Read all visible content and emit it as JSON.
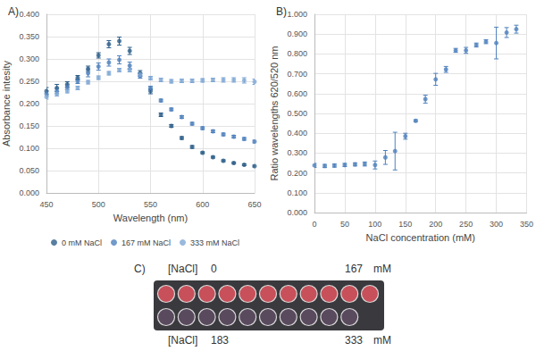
{
  "chart_data": [
    {
      "type": "scatter",
      "title": "A)",
      "x_label": "Wavelength (nm)",
      "y_label": "Absorbance intesity",
      "xlim": [
        450,
        650
      ],
      "xticks": [
        450,
        500,
        550,
        600,
        650
      ],
      "ylim": [
        0,
        0.4
      ],
      "yticks": [
        {
          "value": 0,
          "label": "0.000"
        },
        {
          "value": 0.05,
          "label": "0.050"
        },
        {
          "value": 0.1,
          "label": "0.100"
        },
        {
          "value": 0.15,
          "label": "0.150"
        },
        {
          "value": 0.2,
          "label": "0.200"
        },
        {
          "value": 0.25,
          "label": "0.250"
        },
        {
          "value": 0.3,
          "label": "0.300"
        },
        {
          "value": 0.35,
          "label": "0.350"
        },
        {
          "value": 0.4,
          "label": "0.400"
        }
      ],
      "grid": true,
      "legend": "bottom",
      "marker": "circle",
      "x": [
        450,
        460,
        470,
        480,
        490,
        500,
        510,
        520,
        530,
        540,
        550,
        560,
        570,
        580,
        590,
        600,
        610,
        620,
        630,
        640,
        650
      ],
      "series": [
        {
          "name": "0 mM NaCl",
          "color": "#2e5f8a",
          "values": [
            0.228,
            0.235,
            0.243,
            0.258,
            0.278,
            0.308,
            0.333,
            0.34,
            0.318,
            0.268,
            0.228,
            0.175,
            0.15,
            0.123,
            0.103,
            0.09,
            0.08,
            0.072,
            0.067,
            0.063,
            0.06
          ],
          "errors": [
            0.008,
            0.008,
            0.006,
            0.005,
            0.006,
            0.006,
            0.008,
            0.009,
            0.008,
            0.006,
            0.006,
            0.004,
            0.003,
            0.003,
            0.003,
            0.002,
            0.002,
            0.002,
            0.002,
            0.002,
            0.002
          ]
        },
        {
          "name": "167 mM NaCl",
          "color": "#4f81bd",
          "values": [
            0.222,
            0.228,
            0.237,
            0.25,
            0.268,
            0.283,
            0.292,
            0.298,
            0.285,
            0.262,
            0.235,
            0.207,
            0.187,
            0.17,
            0.155,
            0.145,
            0.138,
            0.131,
            0.126,
            0.121,
            0.115
          ],
          "errors": [
            0.006,
            0.006,
            0.005,
            0.005,
            0.008,
            0.008,
            0.008,
            0.009,
            0.008,
            0.005,
            0.004,
            0.003,
            0.003,
            0.003,
            0.003,
            0.003,
            0.003,
            0.003,
            0.003,
            0.003,
            0.003
          ]
        },
        {
          "name": "333 mM NaCl",
          "color": "#7fa7d4",
          "values": [
            0.215,
            0.222,
            0.228,
            0.235,
            0.248,
            0.258,
            0.268,
            0.275,
            0.275,
            0.265,
            0.257,
            0.253,
            0.25,
            0.251,
            0.251,
            0.252,
            0.253,
            0.253,
            0.253,
            0.252,
            0.249
          ],
          "errors": [
            0.005,
            0.005,
            0.004,
            0.004,
            0.004,
            0.004,
            0.004,
            0.004,
            0.004,
            0.004,
            0.004,
            0.004,
            0.004,
            0.004,
            0.004,
            0.004,
            0.004,
            0.005,
            0.005,
            0.006,
            0.006
          ]
        }
      ]
    },
    {
      "type": "scatter",
      "title": "B)",
      "x_label": "NaCl concentration (mM)",
      "y_label": "Ratio wavelengths 620/520 nm",
      "xlim": [
        0,
        350
      ],
      "xticks": [
        0,
        50,
        100,
        150,
        200,
        250,
        300,
        350
      ],
      "ylim": [
        0,
        1
      ],
      "yticks": [
        {
          "value": 0,
          "label": "0.000"
        },
        {
          "value": 0.1,
          "label": "0.100"
        },
        {
          "value": 0.2,
          "label": "0.200"
        },
        {
          "value": 0.3,
          "label": "0.300"
        },
        {
          "value": 0.4,
          "label": "0.400"
        },
        {
          "value": 0.5,
          "label": "0.500"
        },
        {
          "value": 0.6,
          "label": "0.600"
        },
        {
          "value": 0.7,
          "label": "0.700"
        },
        {
          "value": 0.8,
          "label": "0.800"
        },
        {
          "value": 0.9,
          "label": "0.900"
        },
        {
          "value": 1,
          "label": "1.000"
        }
      ],
      "grid": true,
      "marker": "circle",
      "x": [
        0,
        17,
        33,
        50,
        67,
        83,
        100,
        117,
        133,
        150,
        167,
        183,
        200,
        217,
        233,
        250,
        267,
        283,
        300,
        317,
        333
      ],
      "series": [
        {
          "color": "#4f81bd",
          "values": [
            0.238,
            0.235,
            0.237,
            0.24,
            0.243,
            0.245,
            0.24,
            0.278,
            0.31,
            0.385,
            0.463,
            0.572,
            0.672,
            0.722,
            0.818,
            0.818,
            0.845,
            0.862,
            0.855,
            0.908,
            0.925
          ],
          "errors": [
            0.01,
            0.008,
            0.008,
            0.008,
            0.008,
            0.01,
            0.02,
            0.035,
            0.095,
            0.015,
            0.005,
            0.02,
            0.03,
            0.015,
            0.01,
            0.015,
            0.01,
            0.01,
            0.08,
            0.025,
            0.02
          ]
        }
      ]
    }
  ],
  "panel_c": {
    "label": "C)",
    "rows": [
      {
        "prefix": "[NaCl]",
        "start": "0",
        "end": "167",
        "unit": "mM"
      },
      {
        "prefix": "[NaCl]",
        "start": "183",
        "end": "333",
        "unit": "mM"
      }
    ]
  }
}
